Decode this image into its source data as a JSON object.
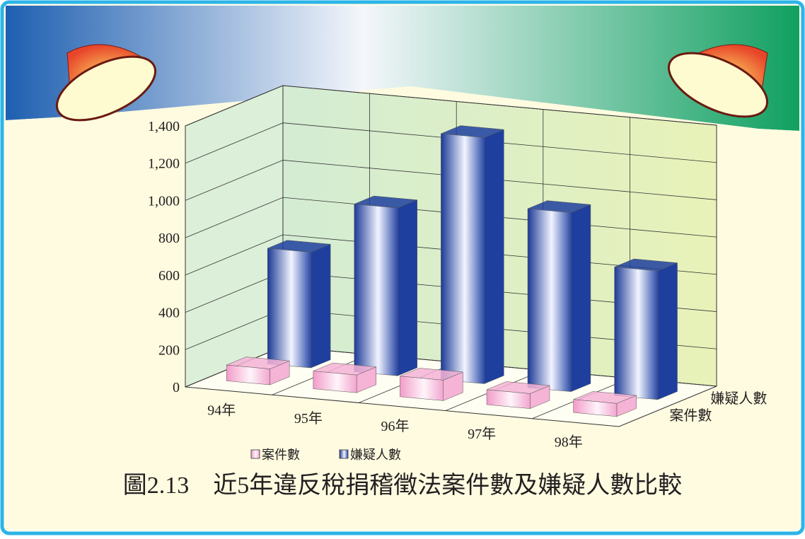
{
  "chart_data": {
    "type": "bar3d",
    "title": "圖2.13　近5年違反稅捐稽徵法案件數及嫌疑人數比較",
    "categories": [
      "94年",
      "95年",
      "96年",
      "97年",
      "98年"
    ],
    "series": [
      {
        "name": "案件數",
        "color": "#f5b3d6",
        "values": [
          85,
          95,
          110,
          80,
          70
        ]
      },
      {
        "name": "嫌疑人數",
        "color": "#1f3f9f",
        "values": [
          620,
          900,
          1320,
          960,
          690
        ]
      }
    ],
    "ylim": [
      0,
      1400
    ],
    "yticks": [
      0,
      200,
      400,
      600,
      800,
      {
        "value": 1000,
        "label": "1,000"
      },
      {
        "value": 1200,
        "label": "1,200"
      },
      {
        "value": 1400,
        "label": "1,400"
      }
    ],
    "grid": true
  }
}
